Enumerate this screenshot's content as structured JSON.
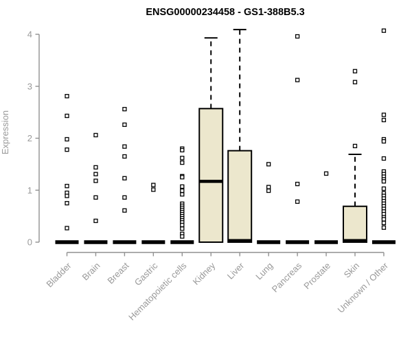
{
  "chart_data": {
    "type": "boxplot",
    "title": "ENSG00000234458 - GS1-388B5.3",
    "ylabel": "Expression",
    "xlabel": "",
    "ylim": [
      0,
      4
    ],
    "yticks": [
      0,
      1,
      2,
      3,
      4
    ],
    "grid": false,
    "legend_position": "none",
    "colors": {
      "background": "#FFFFFF",
      "box_fill": "#ECE7CD",
      "stroke": "#000000",
      "axis_line": "#909090",
      "axis_text": "#999999",
      "title": "#000000"
    },
    "categories": [
      {
        "label": "Bladder",
        "median": 0,
        "points": [
          2.81,
          2.43,
          1.98,
          1.78,
          1.08,
          0.95,
          0.89,
          0.75,
          0.27
        ]
      },
      {
        "label": "Brain",
        "median": 0,
        "points": [
          2.06,
          1.44,
          1.31,
          1.18,
          0.86,
          0.41
        ]
      },
      {
        "label": "Breast",
        "median": 0,
        "points": [
          2.56,
          2.26,
          1.84,
          1.65,
          1.23,
          0.86,
          0.61
        ]
      },
      {
        "label": "Gastric",
        "median": 0,
        "points": [
          1.1,
          1.01
        ]
      },
      {
        "label": "Hematopoietic cells",
        "median": 0,
        "points": [
          1.8,
          1.77,
          1.62,
          1.53,
          1.27,
          1.25,
          1.07,
          0.99,
          0.92,
          0.74,
          0.7,
          0.66,
          0.62,
          0.58,
          0.54,
          0.5,
          0.46,
          0.42,
          0.38,
          0.33,
          0.26,
          0.16,
          0.11
        ]
      },
      {
        "label": "Kidney",
        "box": {
          "q1": 0,
          "median": 1.17,
          "q3": 2.57,
          "whisker_low": 0,
          "whisker_high": 3.93
        },
        "points": []
      },
      {
        "label": "Liver",
        "box": {
          "q1": 0,
          "median": 0,
          "q3": 1.76,
          "whisker_low": 0,
          "whisker_high": 4.09
        },
        "points": []
      },
      {
        "label": "Lung",
        "median": 0,
        "points": [
          1.5,
          1.06,
          0.99
        ]
      },
      {
        "label": "Pancreas",
        "median": 0,
        "points": [
          3.96,
          3.12,
          1.12,
          0.78
        ]
      },
      {
        "label": "Prostate",
        "median": 0,
        "points": [
          1.32
        ]
      },
      {
        "label": "Skin",
        "box": {
          "q1": 0,
          "median": 0,
          "q3": 0.69,
          "whisker_low": 0,
          "whisker_high": 1.69
        },
        "points": [
          3.29,
          3.08,
          1.85
        ]
      },
      {
        "label": "Unknown / Other",
        "median": 0,
        "points": [
          4.07,
          2.45,
          2.35,
          1.98,
          1.94,
          1.61,
          1.36,
          1.31,
          1.26,
          1.21,
          1.17,
          1.03,
          0.94,
          0.89,
          0.84,
          0.79,
          0.74,
          0.69,
          0.64,
          0.59,
          0.54,
          0.48,
          0.44,
          0.37,
          0.28
        ]
      }
    ]
  }
}
